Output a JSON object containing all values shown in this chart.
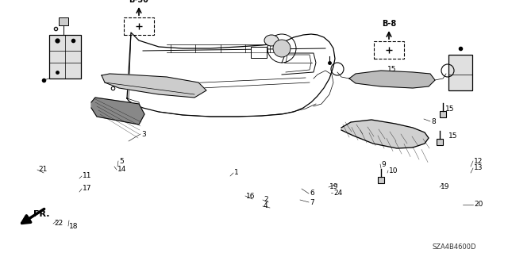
{
  "background_color": "#ffffff",
  "diagram_code": "SZA4B4600D",
  "fig_width": 6.4,
  "fig_height": 3.19,
  "dpi": 100,
  "part_font_size": 6.5,
  "callout_font_size": 7
}
